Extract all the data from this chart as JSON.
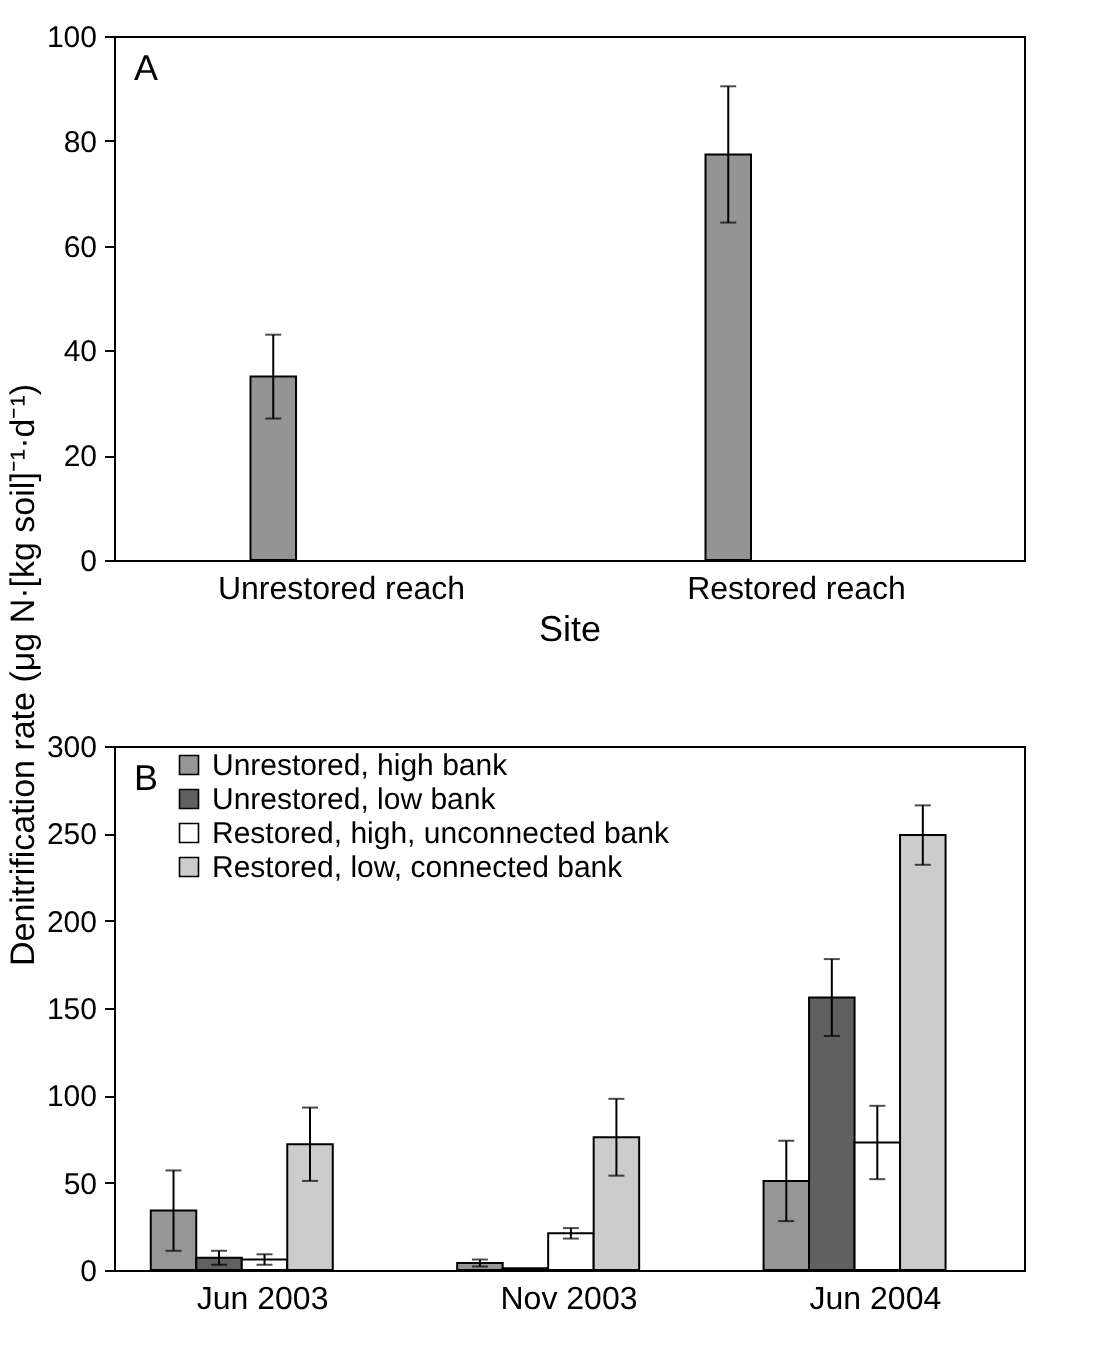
{
  "chart_data": [
    {
      "type": "bar",
      "xlabel": "Site",
      "categories": [
        "Unrestored reach",
        "Restored reach"
      ],
      "values": [
        35,
        77.4
      ],
      "errors": [
        8,
        13
      ],
      "color": "#949494",
      "ylim": [
        0,
        100
      ],
      "yticks": [
        0,
        20,
        40,
        60,
        80,
        100
      ],
      "grid": false,
      "annotations": [
        "A"
      ]
    },
    {
      "type": "bar",
      "ylabel": "Denitrification rate (μg N·[kg soil]⁻¹·d⁻¹)",
      "categories": [
        "Jun 2003",
        "Nov 2003",
        "Jun 2004"
      ],
      "series": [
        {
          "name": "Unrestored, high bank",
          "color": "#969696",
          "values": [
            34,
            4,
            51
          ],
          "errors": [
            23,
            2,
            23
          ]
        },
        {
          "name": "Unrestored, low bank",
          "color": "#606060",
          "values": [
            7,
            1,
            156
          ],
          "errors": [
            4,
            null,
            22
          ]
        },
        {
          "name": "Restored, high, unconnected bank",
          "color": "#ffffff",
          "values": [
            6,
            21,
            73
          ],
          "errors": [
            3,
            3,
            21
          ]
        },
        {
          "name": "Restored, low, connected bank",
          "color": "#cccccc",
          "values": [
            72,
            76,
            249
          ],
          "errors": [
            21,
            22,
            17
          ]
        }
      ],
      "ylim": [
        0,
        300
      ],
      "yticks": [
        0,
        50,
        100,
        150,
        200,
        250,
        300
      ],
      "grid": false,
      "legend": "top left",
      "annotations": [
        "B"
      ]
    }
  ]
}
